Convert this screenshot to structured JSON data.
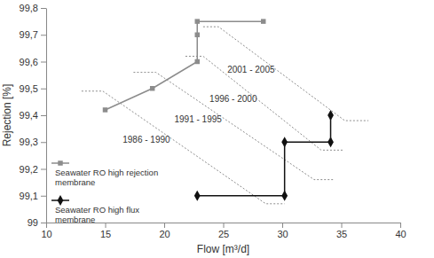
{
  "chart_data": {
    "type": "line",
    "x_label": "Flow [m³/d]",
    "y_label": "Rejection [%]",
    "xlim": [
      10,
      40
    ],
    "xticks": [
      10,
      15,
      20,
      25,
      30,
      35,
      40
    ],
    "ylim": [
      99,
      99.8
    ],
    "yticks": [
      99,
      {
        "value": 99.1,
        "label": "99,1"
      },
      {
        "value": 99.2,
        "label": "99,2"
      },
      {
        "value": 99.3,
        "label": "99,3"
      },
      {
        "value": 99.4,
        "label": "99,4"
      },
      {
        "value": 99.5,
        "label": "99,5"
      },
      {
        "value": 99.6,
        "label": "99,6"
      },
      {
        "value": 99.7,
        "label": "99,7"
      },
      {
        "value": 99.8,
        "label": "99,8"
      }
    ],
    "grid": false,
    "legend": "lower left",
    "series": [
      {
        "name": "Seawater RO high rejection membrane",
        "color": "#8c8c8c",
        "marker": "square",
        "line_style": "solid",
        "x": [
          15,
          19,
          22.8,
          22.8,
          22.8,
          28.4
        ],
        "values": [
          99.42,
          99.5,
          99.6,
          99.7,
          99.75,
          99.75
        ]
      },
      {
        "name": "Seawater RO high flux membrane",
        "color": "#111111",
        "marker": "diamond",
        "line_style": "solid",
        "x": [
          22.8,
          30.2,
          30.2,
          34.1,
          34.1
        ],
        "values": [
          99.1,
          99.1,
          99.3,
          99.3,
          99.4
        ]
      }
    ],
    "reference_lines": [
      {
        "label": "1986 - 1990",
        "color": "#8c8c8c",
        "line_style": "dotted",
        "x": [
          13,
          14.8,
          28.6,
          30.2
        ],
        "values": [
          99.49,
          99.49,
          99.07,
          99.07
        ]
      },
      {
        "label": "1991 - 1995",
        "color": "#8c8c8c",
        "line_style": "dotted",
        "x": [
          17.4,
          19.3,
          32.7,
          34.3
        ],
        "values": [
          99.56,
          99.56,
          99.16,
          99.16
        ]
      },
      {
        "label": "1996 - 2000",
        "color": "#8c8c8c",
        "line_style": "dotted",
        "x": [
          21.8,
          23.3,
          33.3,
          35.2
        ],
        "values": [
          99.62,
          99.62,
          99.27,
          99.27
        ]
      },
      {
        "label": "2001 - 2005",
        "color": "#8c8c8c",
        "line_style": "dotted",
        "x": [
          23.3,
          24.6,
          35.3,
          37.3
        ],
        "values": [
          99.73,
          99.73,
          99.38,
          99.38
        ]
      }
    ]
  }
}
